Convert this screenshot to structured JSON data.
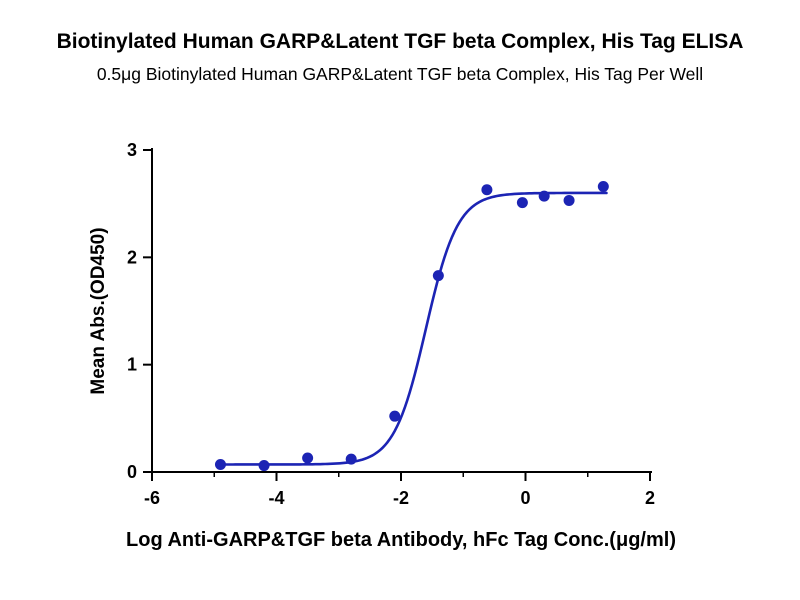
{
  "chart_data": {
    "type": "scatter",
    "title": "Biotinylated Human GARP&Latent TGF beta Complex, His Tag ELISA",
    "subtitle": "0.5μg Biotinylated Human GARP&Latent TGF beta Complex, His Tag Per Well",
    "xlabel": "Log Anti-GARP&TGF beta Antibody, hFc Tag Conc.(μg/ml)",
    "ylabel": "Mean Abs.(OD450)",
    "xlim": [
      -6,
      2
    ],
    "ylim": [
      0,
      3
    ],
    "x_ticks": [
      -6,
      -4,
      -2,
      0,
      2
    ],
    "x_minor_ticks": [
      -5,
      -3,
      -1,
      1
    ],
    "y_ticks": [
      0,
      1,
      2,
      3
    ],
    "grid": false,
    "legend": "none",
    "point_color": "#1c24b4",
    "curve_color": "#1c24b4",
    "axis_color": "#000000",
    "points": [
      {
        "x": -4.9,
        "y": 0.07
      },
      {
        "x": -4.2,
        "y": 0.06
      },
      {
        "x": -3.5,
        "y": 0.13
      },
      {
        "x": -2.8,
        "y": 0.12
      },
      {
        "x": -2.1,
        "y": 0.52
      },
      {
        "x": -1.4,
        "y": 1.83
      },
      {
        "x": -0.62,
        "y": 2.63
      },
      {
        "x": -0.05,
        "y": 2.51
      },
      {
        "x": 0.3,
        "y": 2.57
      },
      {
        "x": 0.7,
        "y": 2.53
      },
      {
        "x": 1.25,
        "y": 2.66
      }
    ],
    "fit_curve": {
      "model": "4PL",
      "bottom": 0.07,
      "top": 2.6,
      "log_ec50": -1.6,
      "hill": 1.7,
      "x_start": -4.9,
      "x_end": 1.3
    }
  }
}
